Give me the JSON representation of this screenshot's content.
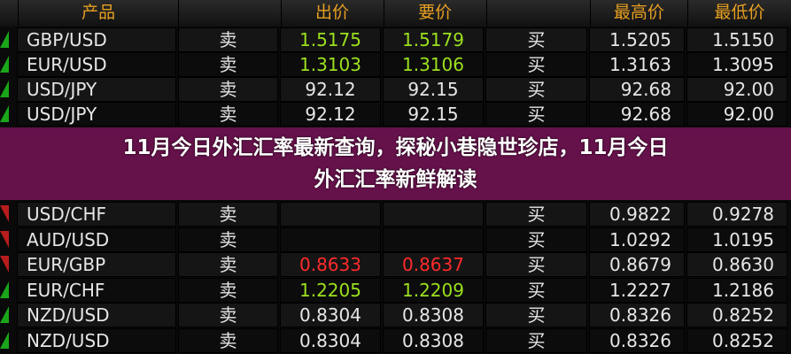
{
  "header": {
    "product": "产品",
    "bid": "出价",
    "ask": "要价",
    "high": "最高价",
    "low": "最低价"
  },
  "colors": {
    "up": "#9be01e",
    "down": "#ff2a2a",
    "neutral": "#e6e6e6",
    "header": "#e8a020",
    "overlay": "#6e1250"
  },
  "rows": [
    {
      "pair": "GBP/USD",
      "sell": "卖",
      "bid": "1.5175",
      "ask": "1.5179",
      "buy": "买",
      "high": "1.5205",
      "low": "1.5150",
      "trend": "up"
    },
    {
      "pair": "EUR/USD",
      "sell": "卖",
      "bid": "1.3103",
      "ask": "1.3106",
      "buy": "买",
      "high": "1.3163",
      "low": "1.3095",
      "trend": "up"
    },
    {
      "pair": "USD/JPY",
      "sell": "卖",
      "bid": "92.12",
      "ask": "92.15",
      "buy": "买",
      "high": "92.68",
      "low": "92.00",
      "trend": "neutral"
    },
    {
      "pair": "USD/JPY",
      "sell": "卖",
      "bid": "92.12",
      "ask": "92.15",
      "buy": "买",
      "high": "92.68",
      "low": "92.00",
      "trend": "neutral"
    },
    {
      "pair": "USD/CHF",
      "sell": "卖",
      "bid": "",
      "ask": "",
      "buy": "买",
      "high": "0.9822",
      "low": "0.9278",
      "trend": "down"
    },
    {
      "pair": "AUD/USD",
      "sell": "卖",
      "bid": "",
      "ask": "",
      "buy": "买",
      "high": "1.0292",
      "low": "1.0195",
      "trend": "down"
    },
    {
      "pair": "EUR/GBP",
      "sell": "卖",
      "bid": "0.8633",
      "ask": "0.8637",
      "buy": "买",
      "high": "0.8679",
      "low": "0.8630",
      "trend": "down"
    },
    {
      "pair": "EUR/CHF",
      "sell": "卖",
      "bid": "1.2205",
      "ask": "1.2209",
      "buy": "买",
      "high": "1.2227",
      "low": "1.2186",
      "trend": "up"
    },
    {
      "pair": "NZD/USD",
      "sell": "卖",
      "bid": "0.8304",
      "ask": "0.8308",
      "buy": "买",
      "high": "0.8326",
      "low": "0.8252",
      "trend": "neutral"
    },
    {
      "pair": "NZD/USD",
      "sell": "卖",
      "bid": "0.8304",
      "ask": "0.8308",
      "buy": "买",
      "high": "0.8326",
      "low": "0.8252",
      "trend": "neutral"
    }
  ],
  "title": {
    "line1": "11月今日外汇汇率最新查询，探秘小巷隐世珍店，11月今日",
    "line2": "外汇汇率新鲜解读"
  }
}
